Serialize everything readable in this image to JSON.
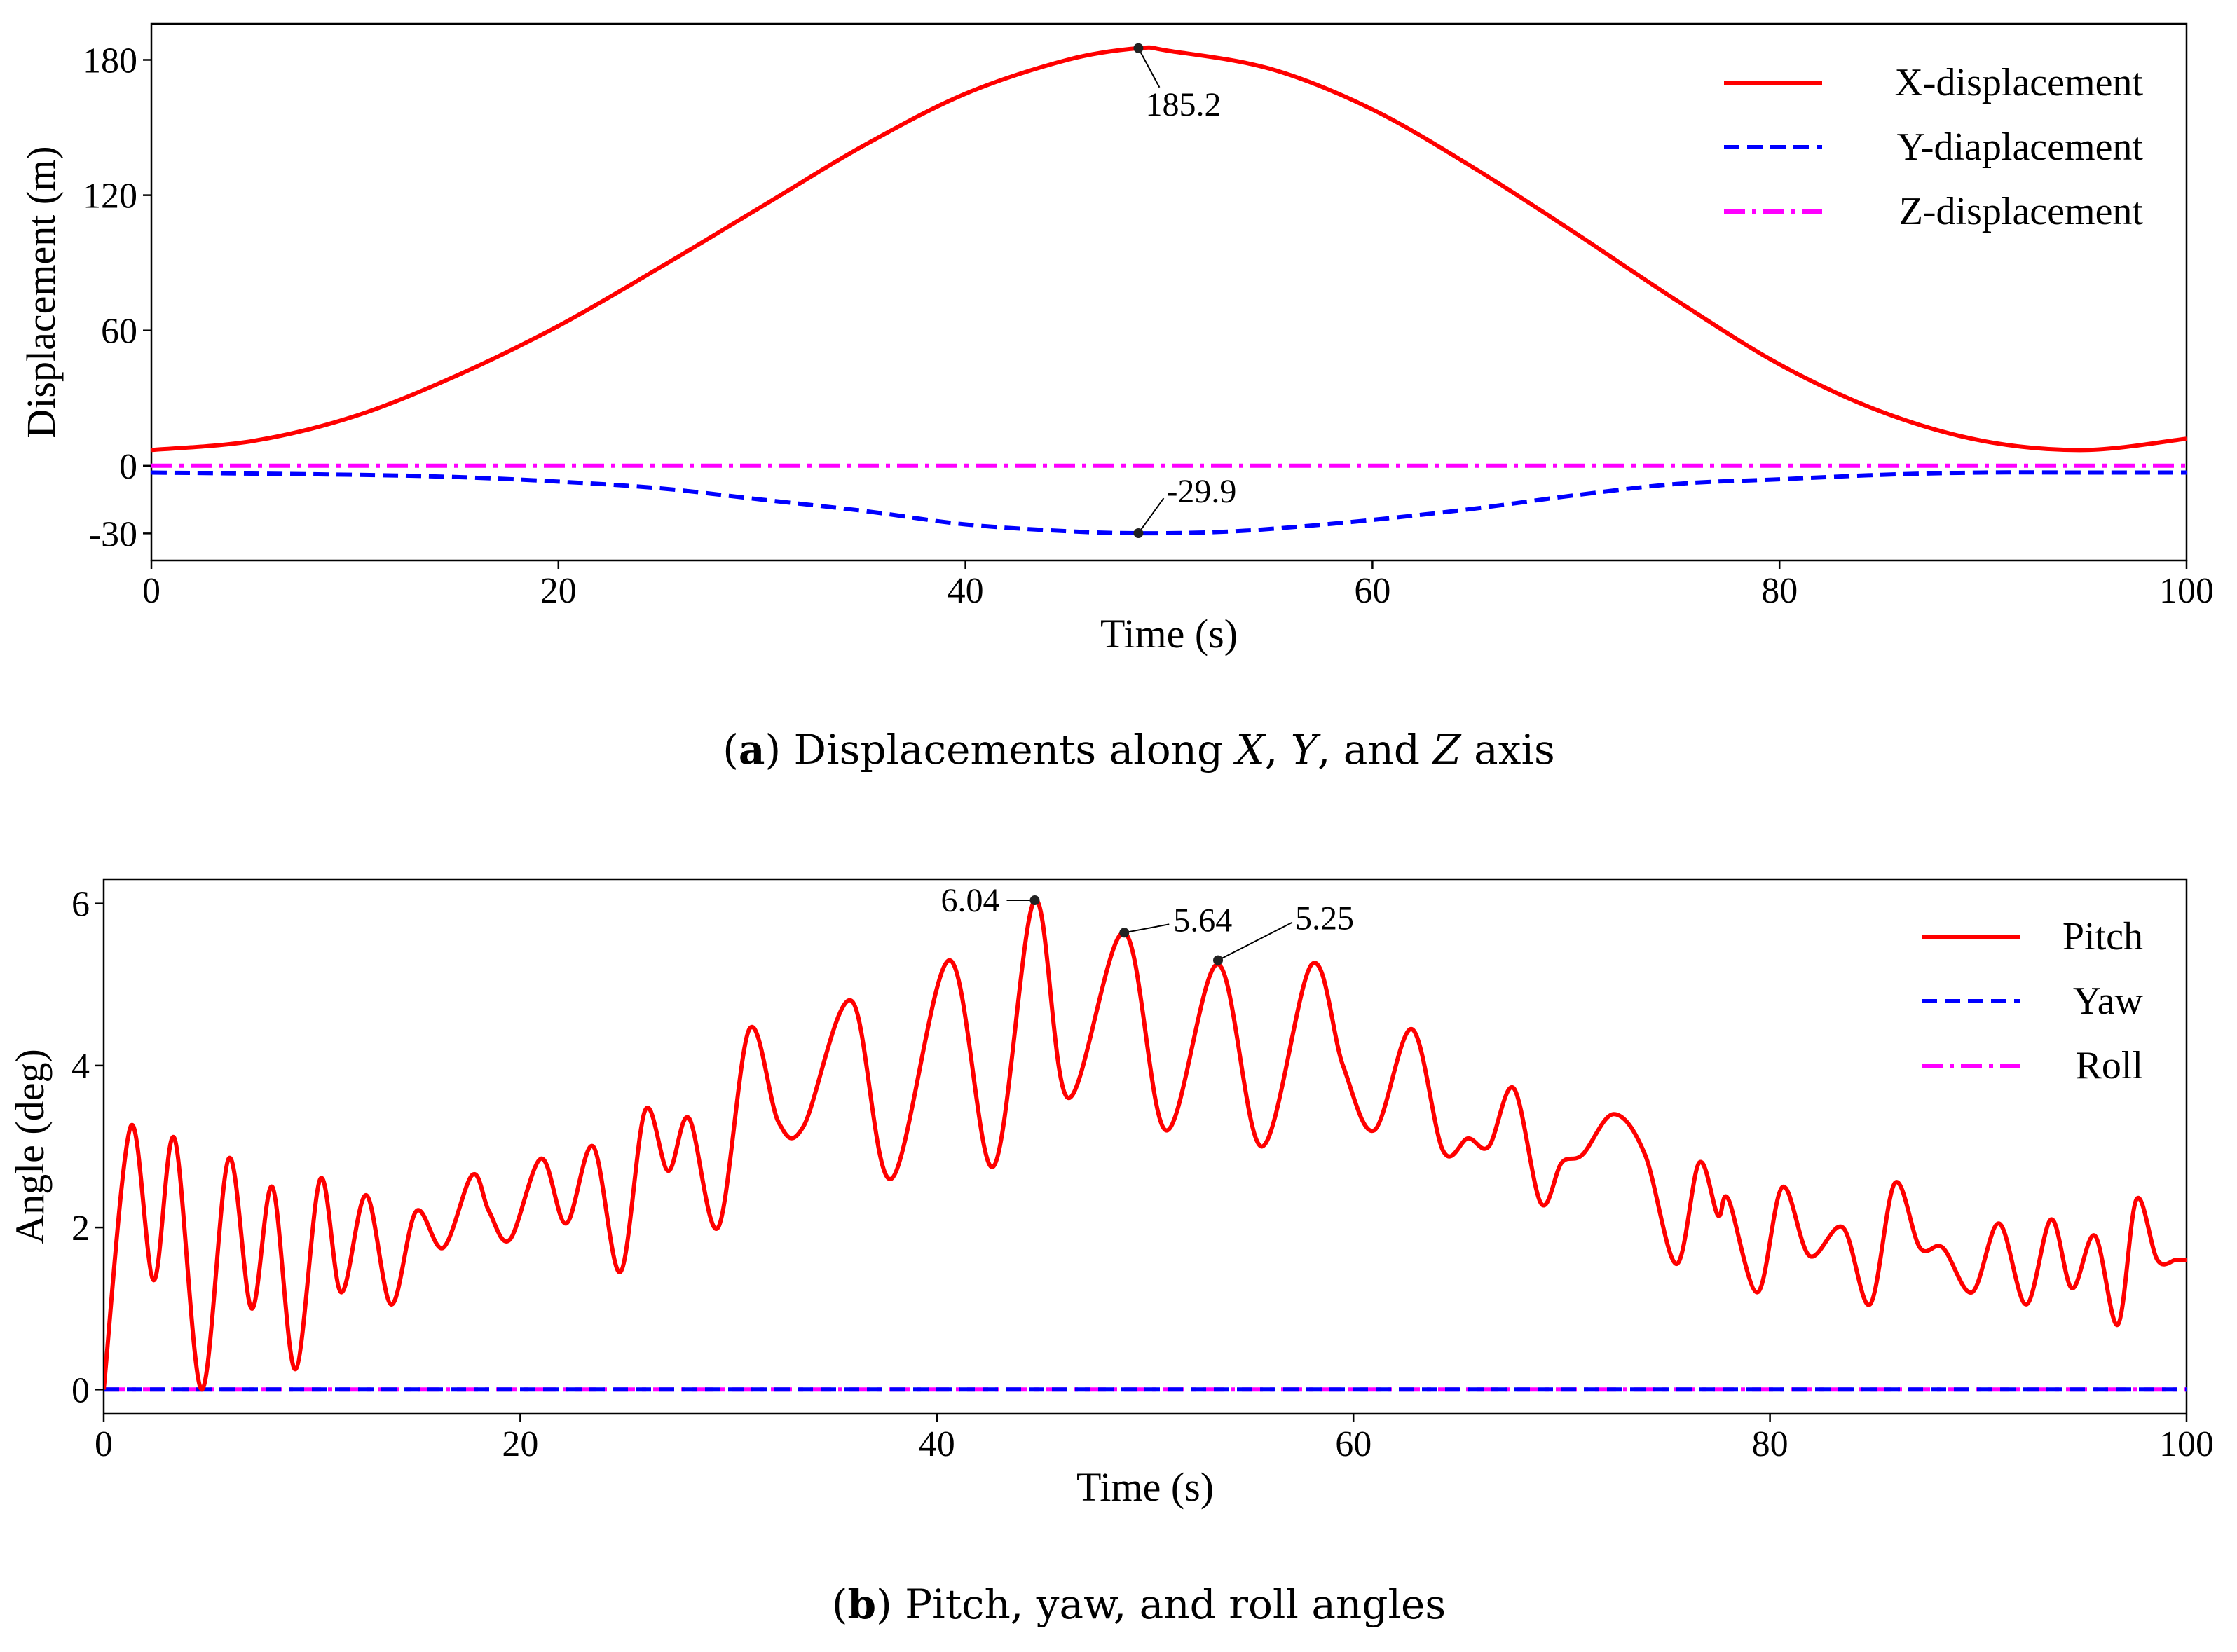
{
  "chart_data": [
    {
      "type": "line",
      "title": "",
      "xlabel": "Time (s)",
      "ylabel": "Displacement (m)",
      "xlim": [
        0,
        100
      ],
      "ylim": [
        -42,
        196
      ],
      "xticks": [
        0,
        20,
        40,
        60,
        80,
        100
      ],
      "xtick_labels": [
        "0",
        "20",
        "40",
        "60",
        "80",
        "100"
      ],
      "yticks": [
        -30,
        0,
        60,
        120,
        180
      ],
      "ytick_labels": [
        "-30",
        "0",
        "60",
        "120",
        "180"
      ],
      "legend_position": "top-right",
      "series": [
        {
          "name": "X-displacement",
          "color": "#ff0000",
          "style": "solid",
          "x": [
            0,
            5,
            10,
            15,
            20,
            25,
            30,
            35,
            40,
            45,
            48.5,
            50,
            55,
            60,
            65,
            70,
            75,
            80,
            85,
            90,
            95,
            100
          ],
          "y": [
            7,
            11,
            22,
            40,
            62,
            88,
            115,
            142,
            165,
            180,
            185.2,
            184,
            176,
            158,
            132,
            103,
            73,
            45,
            24,
            11,
            7,
            12
          ]
        },
        {
          "name": "Y-diaplacement",
          "color": "#0000ff",
          "style": "dashed",
          "x": [
            0,
            10,
            15,
            20,
            25,
            30,
            35,
            40,
            45,
            48.5,
            52,
            55,
            60,
            65,
            70,
            75,
            80,
            85,
            90,
            95,
            100
          ],
          "y": [
            -3,
            -4,
            -5,
            -7,
            -10,
            -15,
            -20,
            -26,
            -29,
            -29.9,
            -29.5,
            -28,
            -24,
            -19,
            -13,
            -8,
            -6,
            -4,
            -3,
            -3,
            -3
          ]
        },
        {
          "name": "Z-displacement",
          "color": "#ff00ff",
          "style": "dashdot",
          "x": [
            0,
            100
          ],
          "y": [
            0,
            0
          ]
        }
      ],
      "annotations": [
        {
          "x": 48.5,
          "y": 185.2,
          "label": "185.2"
        },
        {
          "x": 48.5,
          "y": -29.9,
          "label": "-29.9"
        }
      ],
      "caption": {
        "letter": "a",
        "text_before": "Displacements along ",
        "var1": "X",
        "sep1": ", ",
        "var2": "Y",
        "sep2": ", and ",
        "var3": "Z",
        "text_after": " axis"
      }
    },
    {
      "type": "line",
      "title": "",
      "xlabel": "Time (s)",
      "ylabel": "Angle (deg)",
      "xlim": [
        0,
        100
      ],
      "ylim": [
        -0.3,
        6.3
      ],
      "xticks": [
        0,
        20,
        40,
        60,
        80,
        100
      ],
      "xtick_labels": [
        "0",
        "20",
        "40",
        "60",
        "80",
        "100"
      ],
      "yticks": [
        0,
        2,
        4,
        6
      ],
      "ytick_labels": [
        "0",
        "2",
        "4",
        "6"
      ],
      "legend_position": "top-right",
      "series": [
        {
          "name": "Pitch",
          "color": "#ff0000",
          "style": "solid",
          "x": [
            0,
            1.3,
            2.4,
            3.4,
            4.7,
            6.0,
            7.1,
            8.1,
            9.2,
            10.4,
            11.4,
            12.6,
            13.8,
            15.0,
            16.3,
            17.7,
            18.5,
            19.5,
            21.0,
            22.2,
            23.5,
            24.8,
            26.0,
            27.1,
            28.1,
            29.5,
            31.0,
            32.4,
            33.6,
            35.9,
            37.8,
            40.6,
            42.7,
            44.7,
            46.3,
            49.0,
            51.0,
            53.5,
            55.6,
            58.0,
            59.5,
            61.0,
            62.8,
            64.3,
            65.5,
            66.5,
            67.7,
            69.0,
            70.0,
            71.0,
            72.5,
            74.0,
            75.5,
            76.6,
            77.5,
            78.0,
            79.4,
            80.6,
            81.9,
            83.5,
            84.8,
            86.0,
            87.2,
            88.3,
            89.7,
            91.0,
            92.3,
            93.5,
            94.5,
            95.6,
            96.7,
            97.6,
            98.6,
            99.5,
            100
          ],
          "y": [
            0,
            3.25,
            1.35,
            3.1,
            0,
            2.85,
            1.0,
            2.5,
            0.25,
            2.6,
            1.2,
            2.4,
            1.05,
            2.2,
            1.75,
            2.65,
            2.2,
            1.85,
            2.85,
            2.05,
            3.0,
            1.45,
            3.45,
            2.7,
            3.35,
            2.0,
            4.45,
            3.3,
            3.25,
            4.8,
            2.6,
            5.3,
            2.75,
            6.04,
            3.6,
            5.64,
            3.2,
            5.25,
            3.0,
            5.25,
            4.0,
            3.2,
            4.45,
            2.95,
            3.1,
            3.0,
            3.72,
            2.3,
            2.8,
            2.9,
            3.4,
            2.9,
            1.55,
            2.8,
            2.15,
            2.35,
            1.2,
            2.5,
            1.65,
            2.0,
            1.05,
            2.55,
            1.75,
            1.75,
            1.2,
            2.05,
            1.05,
            2.1,
            1.25,
            1.9,
            0.8,
            2.35,
            1.6,
            1.6,
            1.6
          ]
        },
        {
          "name": "Yaw",
          "color": "#0000ff",
          "style": "dashed",
          "x": [
            0,
            100
          ],
          "y": [
            0,
            0
          ]
        },
        {
          "name": "Roll",
          "color": "#ff00ff",
          "style": "dashdot",
          "x": [
            0,
            100
          ],
          "y": [
            0,
            0
          ]
        }
      ],
      "annotations": [
        {
          "x": 44.7,
          "y": 6.04,
          "label": "6.04"
        },
        {
          "x": 49.0,
          "y": 5.64,
          "label": "5.64"
        },
        {
          "x": 53.5,
          "y": 5.3,
          "label": "5.25"
        }
      ],
      "caption": {
        "letter": "b",
        "text": " Pitch, yaw, and roll angles"
      }
    }
  ]
}
